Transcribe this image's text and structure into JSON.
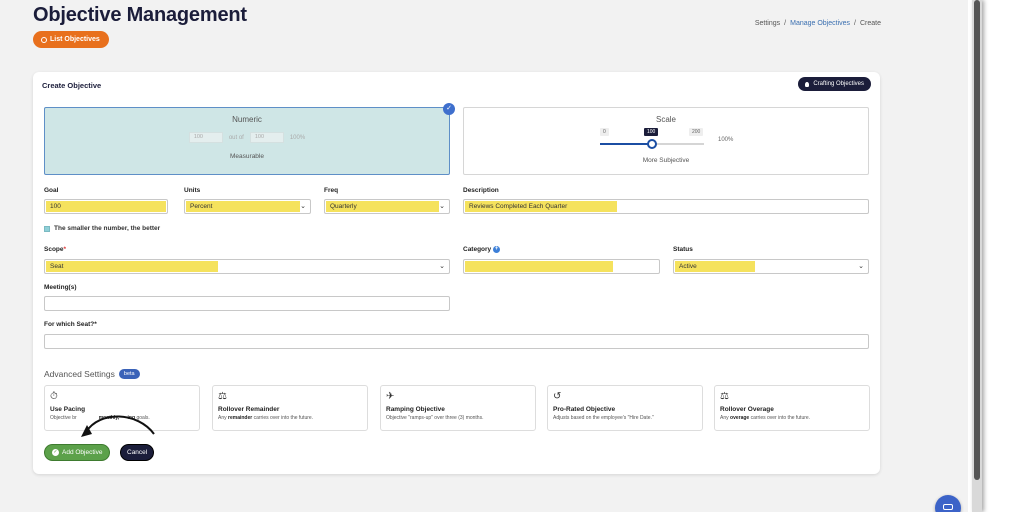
{
  "page": {
    "title": "Objective Management",
    "list_button": "List Objectives"
  },
  "breadcrumb": {
    "items": [
      "Settings",
      "Manage Objectives",
      "Create"
    ]
  },
  "card": {
    "title": "Create Objective",
    "crafting_button": "Crafting Objectives"
  },
  "numeric": {
    "title": "Numeric",
    "min_value": "100",
    "out_of_label": "out of",
    "max_value": "100",
    "percent": "100%",
    "subtitle": "Measurable",
    "selected": true
  },
  "scale": {
    "title": "Scale",
    "min_label": "0",
    "value_label": "100",
    "max_label": "200",
    "value": 100,
    "range": [
      0,
      200
    ],
    "percent": "100%",
    "subtitle": "More Subjective"
  },
  "form": {
    "goal": {
      "label": "Goal",
      "value": "100"
    },
    "units": {
      "label": "Units",
      "value": "Percent"
    },
    "freq": {
      "label": "Freq",
      "value": "Quarterly"
    },
    "description": {
      "label": "Description",
      "value": "Reviews Completed Each Quarter"
    },
    "smaller_better": {
      "label": "The smaller the number, the better",
      "checked": false
    },
    "scope": {
      "label": "Scope",
      "required_mark": "*",
      "value": "Seat"
    },
    "category": {
      "label": "Category",
      "value": ""
    },
    "status": {
      "label": "Status",
      "value": "Active"
    },
    "meetings": {
      "label": "Meeting(s)",
      "value": ""
    },
    "seat": {
      "label": "For which Seat?",
      "required_mark": "*",
      "value": ""
    }
  },
  "advanced": {
    "title": "Advanced Settings",
    "badge": "beta",
    "cards": [
      {
        "icon": "stopwatch-icon",
        "glyph": "⏱",
        "name": "Use Pacing",
        "desc_pre": "Objective br",
        "desc_bold": "",
        "desc_post": "monthly, ",
        "desc_bold2": "",
        "desc_tail": "goals."
      },
      {
        "icon": "scale-icon",
        "glyph": "⚖",
        "name": "Rollover Remainder",
        "desc_pre": "Any ",
        "desc_bold": "remainder",
        "desc_post": " carries over into the future."
      },
      {
        "icon": "plane-icon",
        "glyph": "✈",
        "name": "Ramping Objective",
        "desc_pre": "Objective \"ramps-up\" over three (3) months.",
        "desc_bold": "",
        "desc_post": ""
      },
      {
        "icon": "history-icon",
        "glyph": "↺",
        "name": "Pro-Rated Objective",
        "desc_pre": "Adjusts based on the employee's \"Hire Date.\"",
        "desc_bold": "",
        "desc_post": ""
      },
      {
        "icon": "scale-icon",
        "glyph": "⚖",
        "name": "Rollover Overage",
        "desc_pre": "Any ",
        "desc_bold": "overage",
        "desc_post": " carries over into the future."
      }
    ]
  },
  "actions": {
    "add": "Add Objective",
    "cancel": "Cancel"
  },
  "colors": {
    "accent_orange": "#e8701d",
    "navy": "#1b1d3a",
    "highlight_yellow": "#f5e25d",
    "success_green": "#5ca14a",
    "selected_bg": "#cfe6e6"
  }
}
